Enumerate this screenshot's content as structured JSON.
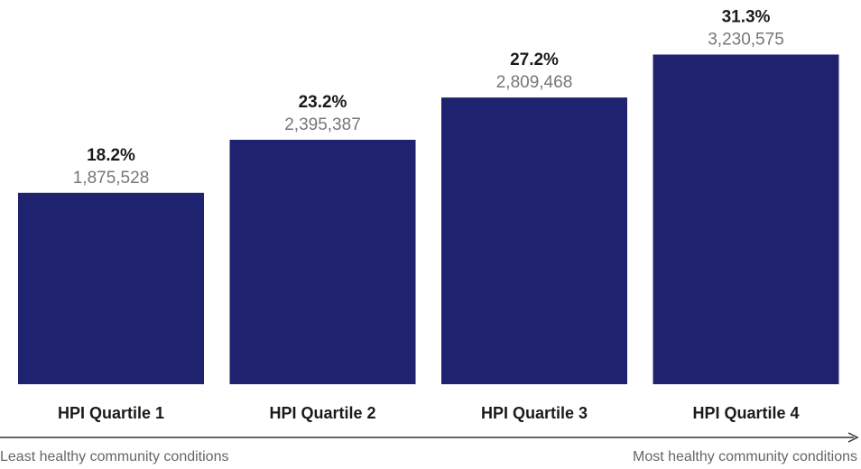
{
  "chart_data": {
    "type": "bar",
    "categories": [
      "HPI Quartile 1",
      "HPI Quartile 2",
      "HPI Quartile 3",
      "HPI Quartile 4"
    ],
    "values": [
      1875528,
      2395387,
      2809468,
      3230575
    ],
    "value_labels": [
      "1,875,528",
      "2,395,387",
      "2,809,468",
      "3,230,575"
    ],
    "percentages": [
      18.2,
      23.2,
      27.2,
      31.3
    ],
    "percentage_labels": [
      "18.2%",
      "23.2%",
      "27.2%",
      "31.3%"
    ],
    "color": "#1f226e",
    "ylim": [
      0,
      3500000
    ],
    "annotations": [
      "Least healthy community conditions",
      "Most healthy community conditions"
    ]
  }
}
